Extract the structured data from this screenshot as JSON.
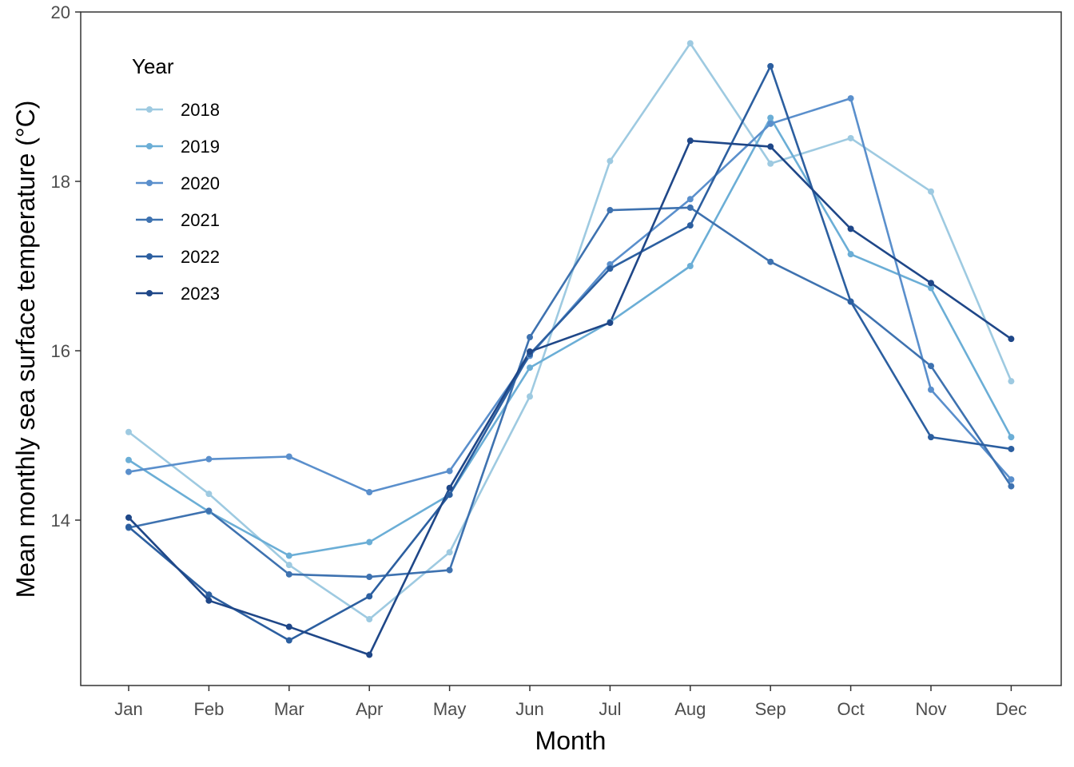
{
  "chart_data": {
    "type": "line",
    "title": "",
    "xlabel": "Month",
    "ylabel": "Mean monthly sea surface temperature (°C)",
    "categories": [
      "Jan",
      "Feb",
      "Mar",
      "Apr",
      "May",
      "Jun",
      "Jul",
      "Aug",
      "Sep",
      "Oct",
      "Nov",
      "Dec"
    ],
    "ylim": [
      12,
      20
    ],
    "yticks": [
      "14",
      "16",
      "18",
      "20"
    ],
    "grid": false,
    "legend": {
      "title": "Year",
      "placement": "top-left inside"
    },
    "series": [
      {
        "name": "2018",
        "color": "#9ecae1",
        "values": [
          15.04,
          14.31,
          13.47,
          12.83,
          13.62,
          15.46,
          18.24,
          19.63,
          18.21,
          18.51,
          17.88,
          15.64
        ]
      },
      {
        "name": "2019",
        "color": "#6baed6",
        "values": [
          14.71,
          14.1,
          13.58,
          13.74,
          14.3,
          15.8,
          16.34,
          17.0,
          18.75,
          17.14,
          16.74,
          14.98
        ]
      },
      {
        "name": "2020",
        "color": "#5a8fcc",
        "values": [
          14.57,
          14.72,
          14.75,
          14.33,
          14.58,
          15.94,
          17.02,
          17.79,
          18.68,
          18.98,
          15.54,
          14.48
        ]
      },
      {
        "name": "2021",
        "color": "#3e72b0",
        "values": [
          13.91,
          14.11,
          13.36,
          13.33,
          13.41,
          16.16,
          17.66,
          17.69,
          17.05,
          16.58,
          15.82,
          14.4
        ]
      },
      {
        "name": "2022",
        "color": "#2c5fa0",
        "values": [
          13.92,
          13.12,
          12.58,
          13.1,
          14.3,
          15.96,
          16.97,
          17.48,
          19.36,
          16.58,
          14.98,
          14.84
        ]
      },
      {
        "name": "2023",
        "color": "#1f4788",
        "values": [
          14.03,
          13.05,
          12.74,
          12.41,
          14.38,
          15.99,
          16.33,
          18.48,
          18.41,
          17.44,
          16.8,
          16.14
        ]
      }
    ]
  }
}
